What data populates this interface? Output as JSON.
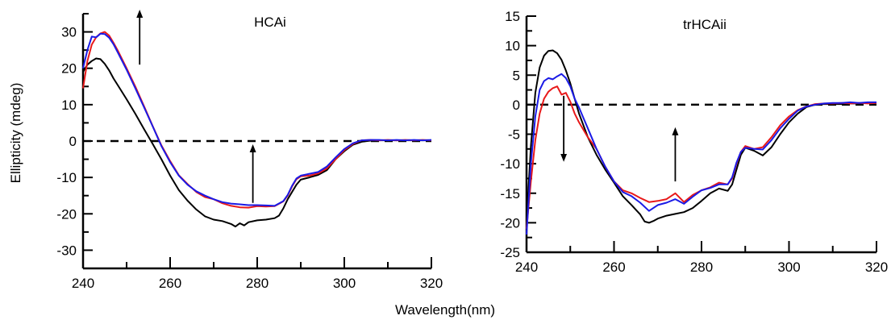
{
  "x_axis_title": "Wavelength(nm)",
  "y_axis_title": "Ellipticity (mdeg)",
  "chart_data": [
    {
      "type": "line",
      "title": "HCAi",
      "xlabel": "Wavelength(nm)",
      "ylabel": "Ellipticity (mdeg)",
      "xlim": [
        240,
        320
      ],
      "ylim": [
        -35,
        35
      ],
      "xticks": [
        240,
        260,
        280,
        300,
        320
      ],
      "yticks": [
        -30,
        -20,
        -10,
        0,
        10,
        20,
        30
      ],
      "grid": false,
      "zero_line": {
        "y": 0,
        "style": "dashed",
        "x": [
          240,
          320
        ]
      },
      "arrows": [
        {
          "x": 253,
          "from": 21,
          "to": 35,
          "direction": "up"
        },
        {
          "x": 279,
          "from": -17,
          "to": -2,
          "direction": "up"
        }
      ],
      "series": [
        {
          "color": "#000000",
          "x": [
            240,
            241,
            242,
            243,
            244,
            245,
            246,
            247,
            248,
            250,
            252,
            254,
            256,
            258,
            260,
            262,
            264,
            266,
            268,
            270,
            272,
            274,
            275,
            276,
            277,
            278,
            280,
            282,
            284,
            285,
            286,
            287,
            288,
            289,
            290,
            292,
            294,
            296,
            298,
            300,
            302,
            304,
            306,
            308,
            310,
            312,
            314,
            316,
            318,
            320
          ],
          "y": [
            19,
            21,
            22,
            22.7,
            22.5,
            21.2,
            19.4,
            17.2,
            15.3,
            11.5,
            7.5,
            3.3,
            -0.8,
            -5,
            -9.5,
            -13.5,
            -16.4,
            -18.8,
            -20.7,
            -21.6,
            -22,
            -22.8,
            -23.5,
            -22.6,
            -23.2,
            -22.3,
            -21.8,
            -21.6,
            -21.2,
            -20.5,
            -18.5,
            -16,
            -14,
            -12,
            -10.6,
            -10,
            -9.3,
            -8,
            -5,
            -2.8,
            -1,
            -0.2,
            0.1,
            0.2,
            0.2,
            0.2,
            0.2,
            0.2,
            0.2,
            0.2
          ]
        },
        {
          "color": "#e8191a",
          "x": [
            240,
            241,
            242,
            243,
            244,
            245,
            246,
            247,
            248,
            250,
            252,
            254,
            256,
            258,
            260,
            262,
            264,
            266,
            268,
            270,
            272,
            274,
            276,
            278,
            280,
            282,
            284,
            286,
            287,
            288,
            289,
            290,
            292,
            294,
            296,
            298,
            300,
            302,
            304,
            306,
            308,
            310,
            312,
            314,
            316,
            318,
            320
          ],
          "y": [
            14.5,
            22,
            26.5,
            28.5,
            29.6,
            30,
            29,
            27,
            24.8,
            20,
            15,
            9.6,
            4.1,
            -1.2,
            -5.5,
            -9.4,
            -11.8,
            -14,
            -15.4,
            -16,
            -17.1,
            -17.8,
            -18.2,
            -18.3,
            -17.9,
            -18,
            -17.9,
            -16.6,
            -15,
            -12.5,
            -10.5,
            -9.7,
            -9.5,
            -8.9,
            -7.5,
            -5,
            -2.5,
            -0.8,
            0.2,
            0.3,
            0.2,
            0.3,
            0.2,
            0.3,
            0.2,
            0.3,
            0.2
          ]
        },
        {
          "color": "#1a1ae6",
          "x": [
            240,
            241,
            242,
            243,
            244,
            245,
            246,
            247,
            248,
            250,
            252,
            254,
            256,
            258,
            260,
            262,
            264,
            266,
            268,
            270,
            272,
            274,
            276,
            278,
            280,
            282,
            284,
            286,
            287,
            288,
            289,
            290,
            292,
            294,
            296,
            298,
            300,
            302,
            304,
            306,
            308,
            310,
            312,
            314,
            316,
            318,
            320
          ],
          "y": [
            20,
            25,
            28.7,
            28.5,
            29.5,
            29.4,
            28.4,
            26.6,
            24.3,
            19.6,
            14.5,
            9.3,
            4,
            -1.4,
            -5.8,
            -9.5,
            -12,
            -13.8,
            -15,
            -16,
            -16.8,
            -17.2,
            -17.4,
            -17.6,
            -17.6,
            -17.7,
            -17.8,
            -16.5,
            -14.8,
            -12.3,
            -10.3,
            -9.5,
            -9,
            -8.5,
            -7,
            -4.5,
            -2.2,
            -0.6,
            0.2,
            0.3,
            0.3,
            0.2,
            0.3,
            0.2,
            0.3,
            0.2,
            0.3
          ]
        }
      ]
    },
    {
      "type": "line",
      "title": "trHCAii",
      "xlabel": "Wavelength(nm)",
      "ylabel": "",
      "xlim": [
        240,
        320
      ],
      "ylim": [
        -25,
        15
      ],
      "xticks": [
        240,
        260,
        280,
        300,
        320
      ],
      "yticks": [
        -25,
        -20,
        -15,
        -10,
        -5,
        0,
        5,
        10,
        15
      ],
      "grid": false,
      "zero_line": {
        "y": 0,
        "style": "dashed",
        "x": [
          240,
          320
        ]
      },
      "arrows": [
        {
          "x": 248.5,
          "from": 1.5,
          "to": -9,
          "direction": "down"
        },
        {
          "x": 274,
          "from": -13,
          "to": -4.5,
          "direction": "up"
        }
      ],
      "series": [
        {
          "color": "#000000",
          "x": [
            240,
            241,
            242,
            243,
            244,
            245,
            246,
            247,
            248,
            249,
            250,
            251,
            252,
            254,
            256,
            258,
            260,
            262,
            264,
            266,
            267,
            268,
            269,
            270,
            272,
            274,
            276,
            278,
            280,
            282,
            284,
            286,
            287,
            288,
            289,
            290,
            292,
            294,
            296,
            298,
            300,
            302,
            304,
            306,
            308,
            310,
            312,
            314,
            316,
            318,
            320
          ],
          "y": [
            -20,
            -7,
            2,
            6.3,
            8.3,
            9.1,
            9.2,
            8.7,
            7.6,
            5.8,
            3.6,
            1,
            -1.5,
            -5.5,
            -8.5,
            -11,
            -13.2,
            -15.5,
            -17,
            -18.6,
            -19.8,
            -20,
            -19.7,
            -19.3,
            -18.8,
            -18.5,
            -18.2,
            -17.5,
            -16.3,
            -15,
            -14.2,
            -14.6,
            -13.5,
            -11,
            -8.5,
            -7.3,
            -7.8,
            -8.6,
            -7.2,
            -5,
            -3,
            -1.5,
            -0.4,
            0,
            0.1,
            0.1,
            0.1,
            0.2,
            0.2,
            0.3,
            0.3
          ]
        },
        {
          "color": "#e8191a",
          "x": [
            240,
            241,
            242,
            243,
            244,
            245,
            246,
            247,
            248,
            249,
            250,
            251,
            252,
            254,
            256,
            258,
            260,
            262,
            264,
            266,
            268,
            270,
            272,
            274,
            276,
            278,
            280,
            282,
            284,
            286,
            287,
            288,
            289,
            290,
            292,
            294,
            296,
            298,
            300,
            302,
            304,
            306,
            308,
            310,
            312,
            314,
            316,
            318,
            320
          ],
          "y": [
            -21,
            -13,
            -6,
            -1.5,
            1,
            2.2,
            2.8,
            3.1,
            1.7,
            2,
            0.5,
            -1.5,
            -3,
            -5.5,
            -7.5,
            -10.5,
            -13,
            -14.5,
            -15,
            -15.8,
            -16.5,
            -16.3,
            -16,
            -15,
            -16.5,
            -15.3,
            -14.5,
            -14,
            -13.2,
            -13.5,
            -12.5,
            -10,
            -8,
            -7,
            -7.5,
            -7.2,
            -5.5,
            -3.5,
            -2,
            -0.9,
            -0.3,
            0.1,
            0.2,
            0.2,
            0.3,
            0.2,
            0.3,
            0.2,
            0.3
          ]
        },
        {
          "color": "#1a1ae6",
          "x": [
            240,
            241,
            242,
            243,
            244,
            245,
            246,
            247,
            248,
            249,
            250,
            251,
            252,
            254,
            256,
            258,
            260,
            262,
            264,
            266,
            268,
            270,
            272,
            274,
            276,
            278,
            280,
            282,
            284,
            286,
            287,
            288,
            289,
            290,
            292,
            294,
            296,
            298,
            300,
            302,
            304,
            306,
            308,
            310,
            312,
            314,
            316,
            318,
            320
          ],
          "y": [
            -22,
            -10,
            -2,
            2.5,
            4,
            4.5,
            4.3,
            4.8,
            5.2,
            4.5,
            3.1,
            1,
            -0.5,
            -4,
            -7.5,
            -10.5,
            -13,
            -14.8,
            -15.5,
            -16.6,
            -18,
            -17,
            -16.6,
            -16,
            -16.8,
            -15.6,
            -14.5,
            -14.1,
            -13.5,
            -13.5,
            -12.3,
            -9.8,
            -8,
            -7.3,
            -7.5,
            -7.6,
            -6,
            -4,
            -2.4,
            -1,
            -0.3,
            0,
            0.2,
            0.3,
            0.3,
            0.4,
            0.3,
            0.4,
            0.4
          ]
        }
      ]
    }
  ]
}
